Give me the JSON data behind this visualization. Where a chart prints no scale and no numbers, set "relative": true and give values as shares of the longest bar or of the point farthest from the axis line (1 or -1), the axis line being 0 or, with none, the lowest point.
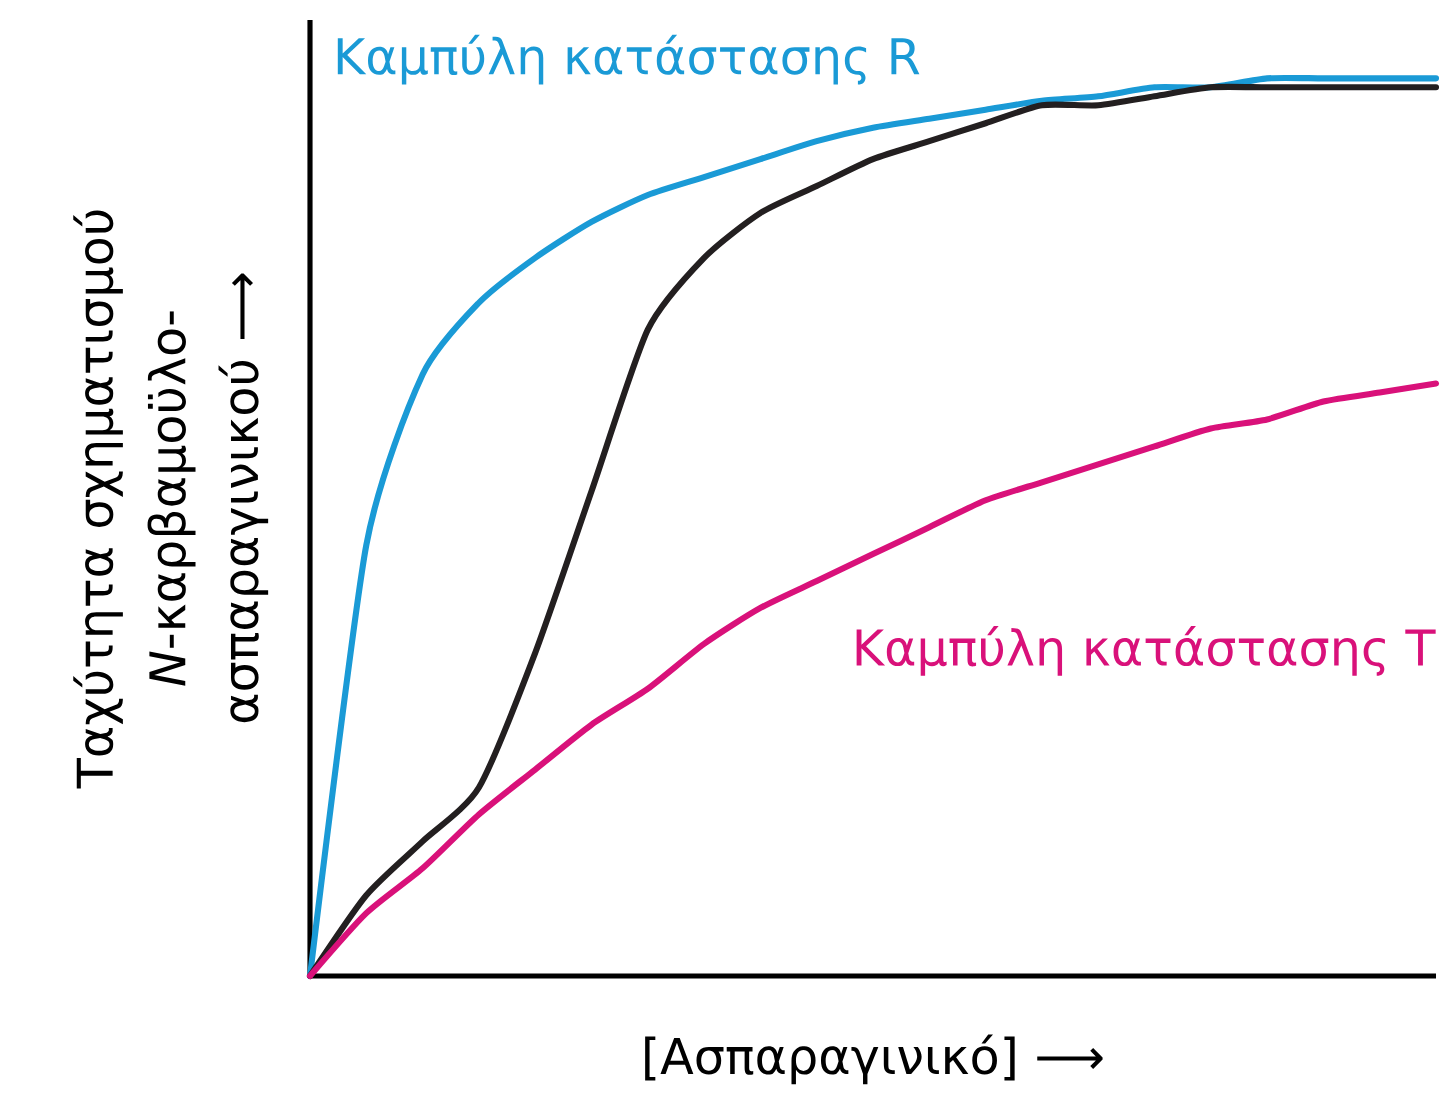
{
  "chart_data": {
    "type": "line",
    "relative": true,
    "xlabel": "[Ασπαραγινικό] ⟶",
    "ylabel": "Ταχύτητα σχηματισμού *N*-καρβαμοϋλο-ασπαραγινικού ⟶",
    "categories": [
      null,
      null,
      null,
      null,
      null,
      null,
      null,
      null,
      null,
      null,
      null,
      null,
      null,
      null,
      null,
      null,
      null,
      null,
      null,
      null,
      null
    ],
    "series": [
      {
        "name": "Καμπύλη κατάστασης R",
        "color": "#1a9ad6",
        "values": [
          0,
          0.48,
          0.67,
          0.75,
          0.8,
          0.84,
          0.87,
          0.89,
          0.91,
          0.93,
          0.945,
          0.955,
          0.965,
          0.975,
          0.98,
          0.99,
          0.99,
          1,
          1,
          1,
          1
        ]
      },
      {
        "color": "#231f20",
        "values": [
          0,
          0.09,
          0.15,
          0.21,
          0.36,
          0.54,
          0.72,
          0.8,
          0.85,
          0.88,
          0.91,
          0.93,
          0.95,
          0.97,
          0.97,
          0.98,
          0.99,
          0.99,
          0.99,
          0.99,
          0.99
        ]
      },
      {
        "name": "Καμπύλη κατάστασης T",
        "color": "#d9117a",
        "values": [
          0,
          0.07,
          0.12,
          0.18,
          0.23,
          0.28,
          0.32,
          0.37,
          0.41,
          0.44,
          0.47,
          0.5,
          0.53,
          0.55,
          0.57,
          0.59,
          0.61,
          0.62,
          0.64,
          0.65,
          0.66
        ]
      }
    ],
    "marker": "none",
    "line_style": "solid"
  }
}
